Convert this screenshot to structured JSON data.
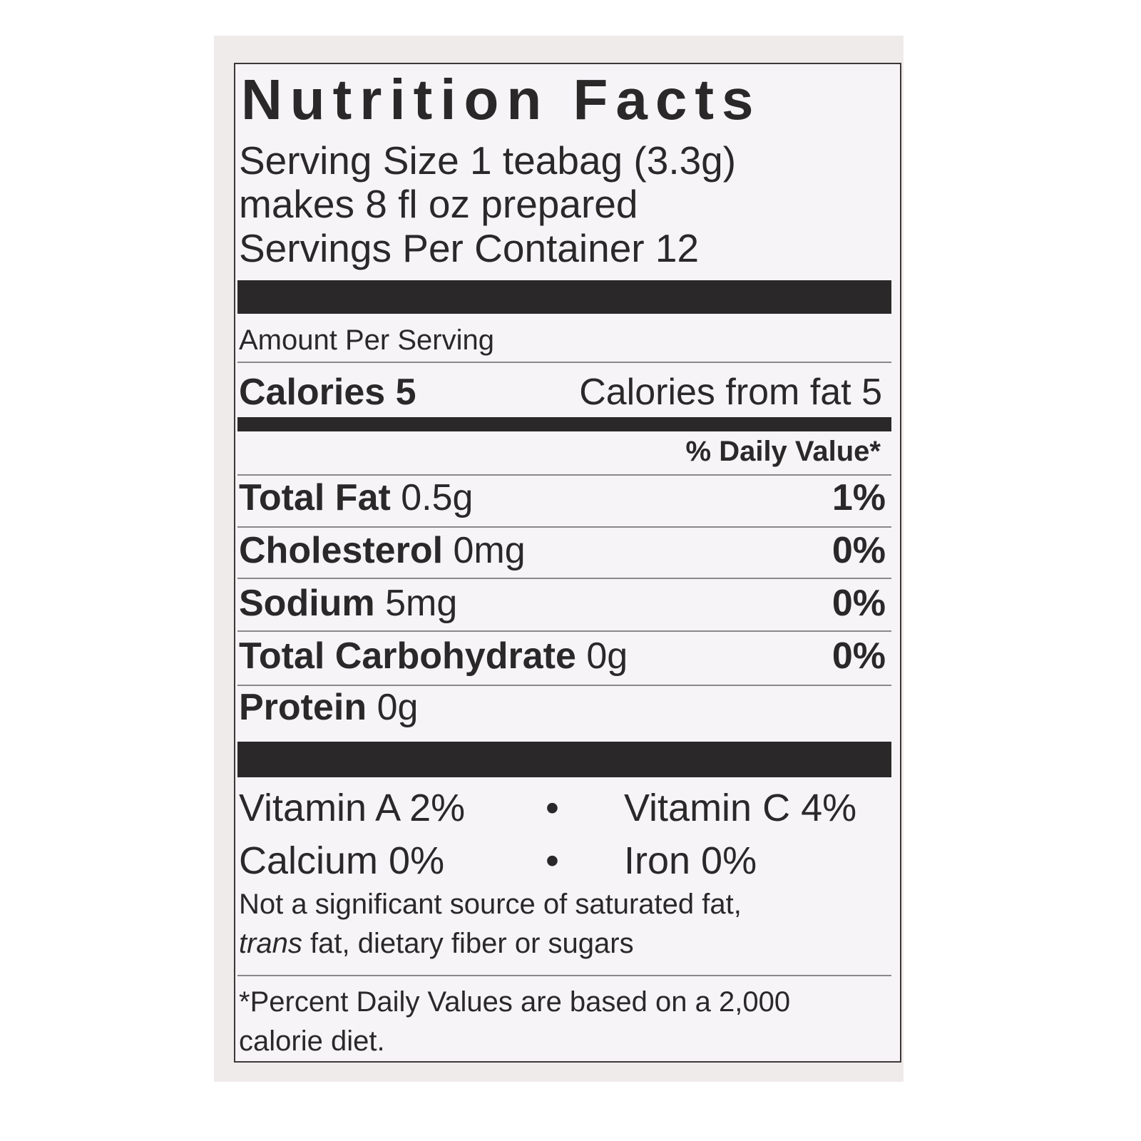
{
  "title": "Nutrition Facts",
  "serving": {
    "size_line": "Serving Size 1 teabag (3.3g)",
    "prepared_line": "makes 8 fl oz prepared",
    "per_container_line": "Servings Per Container 12"
  },
  "amount_per_serving": "Amount Per Serving",
  "calories": {
    "label": "Calories 5",
    "from_fat": "Calories from fat 5"
  },
  "daily_value_header": "% Daily Value*",
  "nutrients": [
    {
      "name": "Total Fat",
      "amount": "0.5g",
      "dv": "1%"
    },
    {
      "name": "Cholesterol",
      "amount": "0mg",
      "dv": "0%"
    },
    {
      "name": "Sodium",
      "amount": "5mg",
      "dv": "0%"
    },
    {
      "name": "Total Carbohydrate",
      "amount": "0g",
      "dv": "0%"
    },
    {
      "name": "Protein",
      "amount": "0g",
      "dv": ""
    }
  ],
  "vitamins": {
    "vitamin_a": "Vitamin A 2%",
    "vitamin_c": "Vitamin C 4%",
    "calcium": "Calcium 0%",
    "iron": "Iron 0%",
    "separator": "•"
  },
  "note": {
    "line1": "Not a significant source of saturated fat,",
    "line2_italic": "trans",
    "line2_rest": " fat, dietary fiber or sugars"
  },
  "footnote": {
    "line1": "*Percent Daily Values are based on a 2,000",
    "line2": "calorie diet."
  }
}
